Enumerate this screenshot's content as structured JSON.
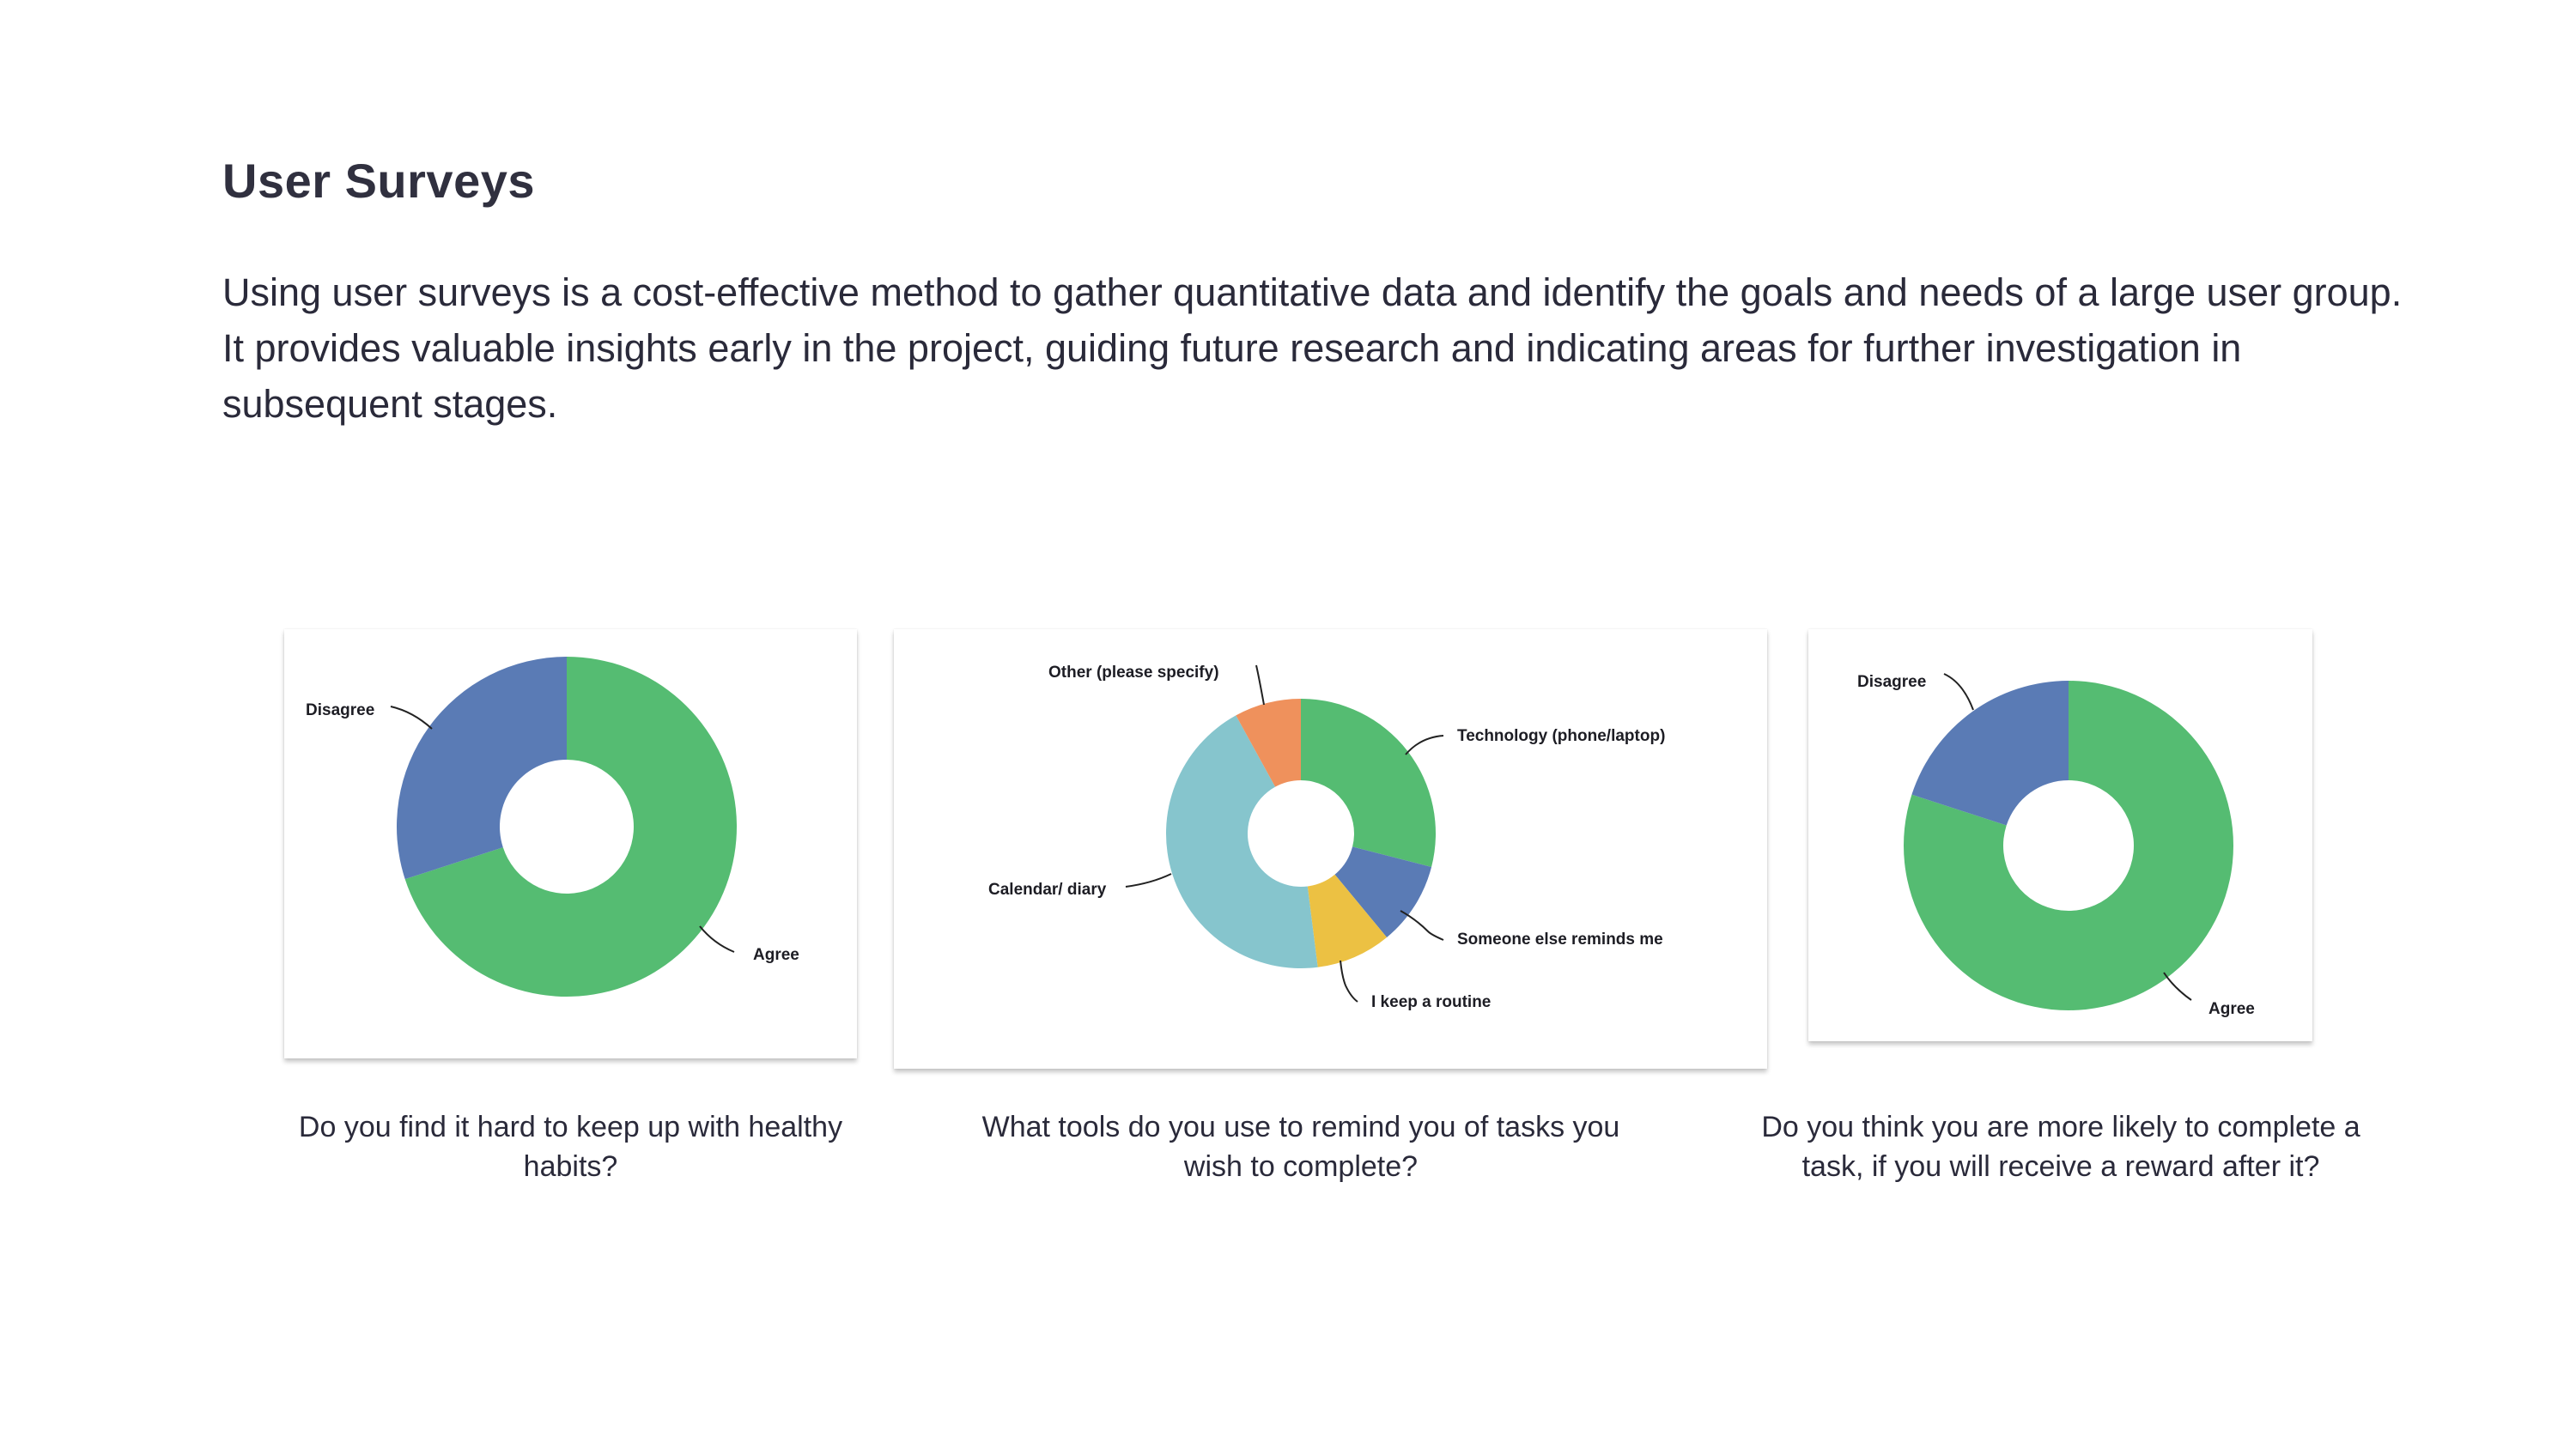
{
  "page": {
    "title": "User Surveys",
    "intro": "Using user surveys is a cost-effective method to gather quantitative data and identify the goals and needs of a large user group. It provides valuable insights early in the project, guiding future research and indicating areas for further investigation in subsequent stages."
  },
  "colors": {
    "agree": "#55bc72",
    "disagree": "#5a7bb5",
    "technology": "#55bc72",
    "someone_else": "#5a7bb5",
    "routine": "#ecc143",
    "calendar": "#86c5cd",
    "other": "#ef915c"
  },
  "chart_data": [
    {
      "type": "pie",
      "variant": "donut",
      "caption": "Do you find it hard to keep up with healthy habits?",
      "labels": [
        "Agree",
        "Disagree"
      ],
      "values": [
        70,
        30
      ],
      "colors": [
        "#55bc72",
        "#5a7bb5"
      ]
    },
    {
      "type": "pie",
      "variant": "donut",
      "caption": "What tools do you use to remind you of tasks you wish to complete?",
      "labels": [
        "Technology (phone/laptop)",
        "Someone else reminds me",
        "I keep a routine",
        "Calendar/ diary",
        "Other (please specify)"
      ],
      "values": [
        29,
        10,
        9,
        44,
        8
      ],
      "colors": [
        "#55bc72",
        "#5a7bb5",
        "#ecc143",
        "#86c5cd",
        "#ef915c"
      ]
    },
    {
      "type": "pie",
      "variant": "donut",
      "caption": "Do you think you are more likely to complete a task, if you will receive a reward after it?",
      "labels": [
        "Agree",
        "Disagree"
      ],
      "values": [
        80,
        20
      ],
      "colors": [
        "#55bc72",
        "#5a7bb5"
      ]
    }
  ]
}
